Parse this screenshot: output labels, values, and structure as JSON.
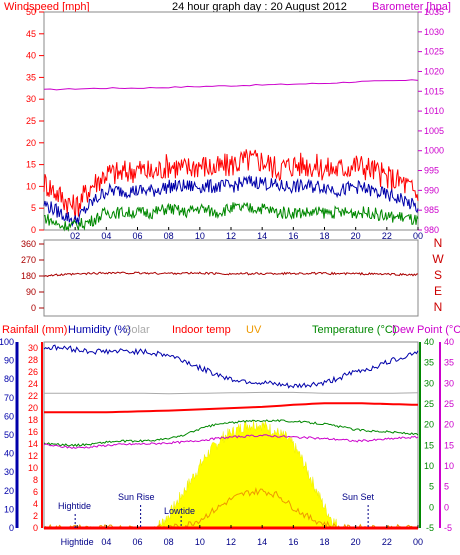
{
  "chart_data": [
    {
      "type": "line",
      "title": "24 hour graph day : 20 August 2012",
      "left_axis_label": "Windspeed [mph]",
      "right_axis_label": "Barometer [hpa]",
      "left_ticks": [
        "0",
        "5",
        "10",
        "15",
        "20",
        "25",
        "30",
        "35",
        "40",
        "45",
        "50"
      ],
      "right_ticks": [
        "980",
        "985",
        "990",
        "995",
        "1000",
        "1005",
        "1010",
        "1015",
        "1020",
        "1025",
        "1030",
        "1035"
      ],
      "x_ticks": [
        "02",
        "04",
        "06",
        "08",
        "10",
        "12",
        "14",
        "16",
        "18",
        "20",
        "22",
        "00"
      ],
      "left_range": [
        0,
        50
      ],
      "right_range": [
        980,
        1035
      ],
      "x_range_hours": [
        0,
        24
      ],
      "series": [
        {
          "name": "Barometer",
          "color": "#cc00cc",
          "axis": "right",
          "x": [
            0,
            2,
            4,
            6,
            8,
            10,
            12,
            14,
            16,
            18,
            20,
            22,
            24
          ],
          "values": [
            1015.4,
            1015.6,
            1015.8,
            1015.8,
            1016.0,
            1016.2,
            1016.4,
            1016.6,
            1016.8,
            1017.0,
            1017.4,
            1017.6,
            1017.8
          ]
        },
        {
          "color": "#ff0000",
          "axis": "left",
          "x": [
            0,
            1,
            2,
            3,
            4,
            5,
            6,
            7,
            8,
            9,
            10,
            11,
            12,
            13,
            14,
            15,
            16,
            17,
            18,
            19,
            20,
            21,
            22,
            23,
            24
          ],
          "values": [
            11,
            8,
            5,
            10,
            13,
            13,
            14,
            13,
            15,
            14,
            15,
            14,
            15,
            16,
            16,
            14,
            15,
            15,
            14,
            14,
            15,
            14,
            12,
            11,
            8
          ]
        },
        {
          "color": "#0000aa",
          "axis": "left",
          "x": [
            0,
            1,
            2,
            3,
            4,
            5,
            6,
            7,
            8,
            9,
            10,
            11,
            12,
            13,
            14,
            15,
            16,
            17,
            18,
            19,
            20,
            21,
            22,
            23,
            24
          ],
          "values": [
            6,
            4,
            2,
            6,
            9,
            9,
            9,
            9,
            10,
            10,
            10,
            10,
            10,
            11,
            11,
            10,
            10,
            10,
            10,
            9,
            10,
            9,
            8,
            7,
            5
          ]
        },
        {
          "color": "#008800",
          "axis": "left",
          "x": [
            0,
            1,
            2,
            3,
            4,
            5,
            6,
            7,
            8,
            9,
            10,
            11,
            12,
            13,
            14,
            15,
            16,
            17,
            18,
            19,
            20,
            21,
            22,
            23,
            24
          ],
          "values": [
            3,
            1,
            1,
            2,
            4,
            4,
            4,
            4,
            5,
            4,
            5,
            4,
            5,
            5,
            5,
            4,
            4,
            4,
            4,
            4,
            4,
            4,
            3,
            3,
            2
          ]
        }
      ]
    },
    {
      "type": "line",
      "left_ticks": [
        "360",
        "270",
        "180",
        "90",
        "0"
      ],
      "left_range": [
        0,
        360
      ],
      "right_labels": [
        "N",
        "W",
        "S",
        "E",
        "N"
      ],
      "series": [
        {
          "color": "#aa0000",
          "x": [
            0,
            2,
            4,
            6,
            8,
            10,
            12,
            14,
            16,
            18,
            20,
            22,
            24
          ],
          "values": [
            182,
            190,
            198,
            196,
            195,
            196,
            192,
            193,
            195,
            194,
            193,
            190,
            186
          ]
        }
      ]
    },
    {
      "type": "line",
      "header_labels": {
        "rainfall": "Rainfall (mm)",
        "humidity": "Humidity (%)",
        "solar": "Solar",
        "indoor": "Indoor temp",
        "uv": "UV",
        "temperature": "Temperature (°C)",
        "dewpoint": "Dew Point (°C)"
      },
      "header_colors": {
        "rainfall": "#ff0000",
        "humidity": "#0000aa",
        "solar": "#aaaaaa",
        "indoor": "#ff0000",
        "uv": "#ee9900",
        "temperature": "#008800",
        "dewpoint": "#cc00cc"
      },
      "humidity_ticks": [
        "0",
        "10",
        "20",
        "30",
        "40",
        "50",
        "60",
        "70",
        "80",
        "90",
        "100"
      ],
      "rain_ticks": [
        "0",
        "2",
        "4",
        "6",
        "8",
        "10",
        "12",
        "14",
        "16",
        "18",
        "20",
        "22",
        "24",
        "26",
        "28",
        "30"
      ],
      "temp_ticks": [
        "-5",
        "0",
        "5",
        "10",
        "15",
        "20",
        "25",
        "30",
        "35",
        "40"
      ],
      "temp_ticks_right": [
        "-5",
        "0",
        "5",
        "10",
        "15",
        "20",
        "25",
        "30",
        "35",
        "40"
      ],
      "x_ticks": [
        "Hightide",
        "04",
        "06",
        "08",
        "10",
        "12",
        "14",
        "16",
        "18",
        "20",
        "22",
        "00"
      ],
      "annotations": [
        "Hightide",
        "Sun Rise",
        "Lowtide",
        "Sun Set"
      ],
      "temp_range": [
        -5,
        40
      ],
      "humidity_range": [
        0,
        100
      ],
      "series": [
        {
          "name": "Humidity (%)",
          "color": "#0000aa",
          "axis": "humidity",
          "x": [
            0,
            1,
            2,
            3,
            4,
            5,
            6,
            7,
            8,
            9,
            10,
            11,
            12,
            13,
            14,
            15,
            16,
            17,
            18,
            19,
            20,
            21,
            22,
            23,
            24
          ],
          "values": [
            97,
            97,
            96,
            95,
            95,
            95,
            95,
            94,
            93,
            90,
            86,
            83,
            80,
            79,
            78,
            77,
            76,
            77,
            78,
            81,
            84,
            86,
            89,
            92,
            95
          ]
        },
        {
          "name": "Indoor temp",
          "color": "#ff0000",
          "axis": "temp",
          "x": [
            0,
            2,
            4,
            6,
            8,
            10,
            12,
            14,
            16,
            18,
            20,
            22,
            24
          ],
          "values": [
            23.0,
            23.0,
            23.0,
            23.2,
            23.4,
            23.7,
            24.0,
            24.3,
            24.8,
            25.2,
            25.2,
            25.0,
            24.8
          ]
        },
        {
          "name": "Solar",
          "color": "#aaaaaa",
          "axis": "temp",
          "x": [
            0,
            2,
            4,
            6,
            8,
            10,
            12,
            14,
            16,
            18,
            20,
            22,
            24
          ],
          "values": [
            27.6,
            27.6,
            27.6,
            27.6,
            27.5,
            27.6,
            27.7,
            27.8,
            27.8,
            27.6,
            27.6,
            27.6,
            27.7
          ]
        },
        {
          "name": "Temperature (°C)",
          "color": "#008800",
          "axis": "temp",
          "x": [
            0,
            1,
            2,
            3,
            4,
            5,
            6,
            7,
            8,
            9,
            10,
            11,
            12,
            13,
            14,
            15,
            16,
            17,
            18,
            19,
            20,
            21,
            22,
            23,
            24
          ],
          "values": [
            15.5,
            15.2,
            15.0,
            15.3,
            15.8,
            16.0,
            16.0,
            16.2,
            16.6,
            17.5,
            19.0,
            20.0,
            20.5,
            20.8,
            21.0,
            21.0,
            20.8,
            20.5,
            20.2,
            19.5,
            18.8,
            18.5,
            18.3,
            18.0,
            17.6
          ]
        },
        {
          "name": "Dew Point (°C)",
          "color": "#cc00cc",
          "axis": "temp",
          "x": [
            0,
            1,
            2,
            3,
            4,
            5,
            6,
            7,
            8,
            9,
            10,
            11,
            12,
            13,
            14,
            15,
            16,
            17,
            18,
            19,
            20,
            21,
            22,
            23,
            24
          ],
          "values": [
            15.2,
            14.7,
            14.4,
            14.6,
            15.0,
            15.2,
            15.3,
            15.4,
            15.6,
            15.8,
            16.2,
            16.6,
            17.0,
            17.2,
            17.4,
            17.2,
            17.0,
            16.8,
            16.6,
            16.4,
            16.0,
            16.2,
            16.5,
            16.8,
            17.0
          ]
        },
        {
          "name": "Solar",
          "color": "#ffff00",
          "axis": "temp",
          "fill": true,
          "x": [
            0,
            7.0,
            7.5,
            8.0,
            8.5,
            9.0,
            9.5,
            10.0,
            10.5,
            11.0,
            11.5,
            12.0,
            12.5,
            13.0,
            13.5,
            14.0,
            14.5,
            15.0,
            15.5,
            16.0,
            16.5,
            17.0,
            17.5,
            18.0,
            18.5,
            19.0,
            24
          ],
          "values": [
            -5,
            -5,
            -4,
            -2,
            1,
            4,
            7,
            10,
            13,
            15,
            17,
            18,
            19,
            20,
            20,
            20,
            19,
            18,
            17,
            15,
            12,
            8,
            4,
            0,
            -3,
            -5,
            -5
          ]
        },
        {
          "name": "UV",
          "color": "#ee9900",
          "axis": "temp",
          "x": [
            0,
            8.0,
            9.0,
            10.0,
            11.0,
            12.0,
            13.0,
            14.0,
            15.0,
            16.0,
            17.0,
            18.0,
            19.0,
            24
          ],
          "values": [
            -5,
            -5,
            -4.5,
            -3,
            -0.5,
            2,
            3.5,
            4,
            3,
            0,
            -2.5,
            -4,
            -5,
            -5
          ]
        },
        {
          "name": "Rainfall (mm)",
          "color": "#ff0000",
          "axis": "humidity",
          "x": [
            0,
            24
          ],
          "values": [
            0,
            0
          ]
        }
      ]
    }
  ]
}
